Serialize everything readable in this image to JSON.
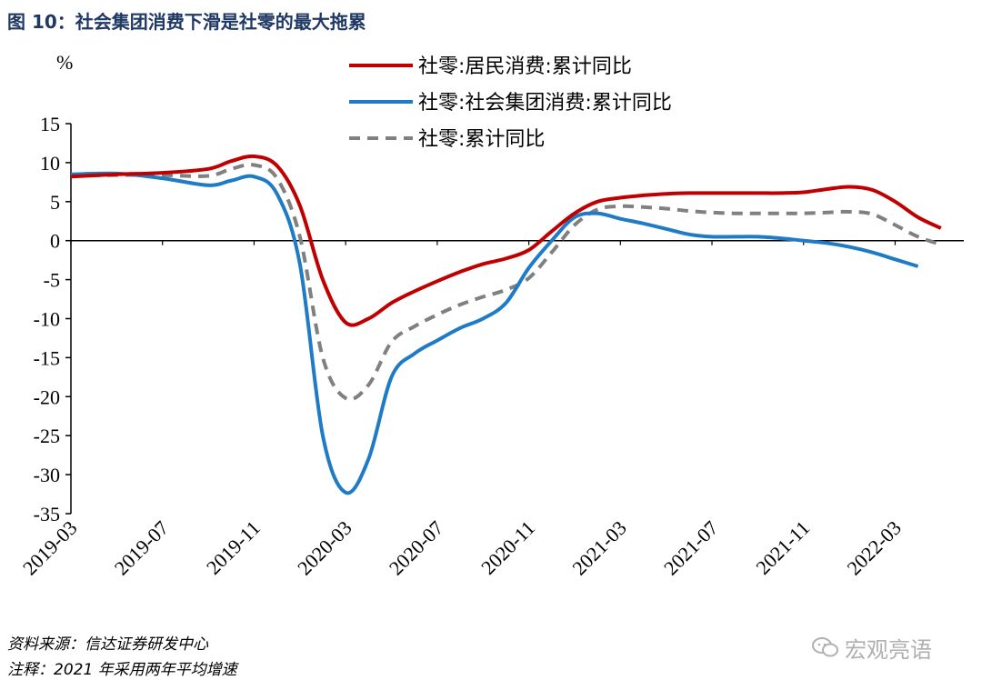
{
  "title": "图 10：社会集团消费下滑是社零的最大拖累",
  "source": "资料来源：信达证券研发中心",
  "note": "注释：2021 年采用两年平均增速",
  "watermark": "宏观亮语",
  "colors": {
    "series1": "#c00000",
    "series2": "#1f7bc6",
    "series3": "#808080",
    "title": "#1f3864"
  },
  "chart_data": {
    "type": "line",
    "ylabel": "%",
    "ylim": [
      -35,
      15
    ],
    "yticks": [
      15,
      10,
      5,
      0,
      -5,
      -10,
      -15,
      -20,
      -25,
      -30,
      -35
    ],
    "xrange": [
      "2019-03",
      "2022-06"
    ],
    "xticks": [
      "2019-03",
      "2019-07",
      "2019-11",
      "2020-03",
      "2020-07",
      "2020-11",
      "2021-03",
      "2021-07",
      "2021-11",
      "2022-03"
    ],
    "legend_position": "top-right",
    "series": [
      {
        "name": "社零:居民消费:累计同比",
        "style": "solid",
        "points": [
          [
            "2019-03",
            8.2
          ],
          [
            "2019-05",
            8.5
          ],
          [
            "2019-07",
            8.7
          ],
          [
            "2019-09",
            9.2
          ],
          [
            "2019-10",
            10.2
          ],
          [
            "2019-11",
            10.8
          ],
          [
            "2019-12",
            9.6
          ],
          [
            "2020-01",
            4.5
          ],
          [
            "2020-02",
            -5
          ],
          [
            "2020-03",
            -10.5
          ],
          [
            "2020-04",
            -10
          ],
          [
            "2020-05",
            -8
          ],
          [
            "2020-06",
            -6.5
          ],
          [
            "2020-07",
            -5.2
          ],
          [
            "2020-08",
            -4
          ],
          [
            "2020-09",
            -3
          ],
          [
            "2020-10",
            -2.3
          ],
          [
            "2020-11",
            -1.2
          ],
          [
            "2020-12",
            1.2
          ],
          [
            "2021-01",
            3.5
          ],
          [
            "2021-02",
            5
          ],
          [
            "2021-03",
            5.5
          ],
          [
            "2021-04",
            5.8
          ],
          [
            "2021-05",
            6
          ],
          [
            "2021-06",
            6.1
          ],
          [
            "2021-07",
            6.1
          ],
          [
            "2021-08",
            6.1
          ],
          [
            "2021-09",
            6.1
          ],
          [
            "2021-10",
            6.1
          ],
          [
            "2021-11",
            6.2
          ],
          [
            "2021-12",
            6.6
          ],
          [
            "2022-01",
            6.9
          ],
          [
            "2022-02",
            6.5
          ],
          [
            "2022-03",
            5
          ],
          [
            "2022-04",
            3
          ],
          [
            "2022-05",
            1.6
          ]
        ]
      },
      {
        "name": "社零:社会集团消费:累计同比",
        "style": "solid",
        "points": [
          [
            "2019-03",
            8.5
          ],
          [
            "2019-05",
            8.6
          ],
          [
            "2019-07",
            8
          ],
          [
            "2019-09",
            7.1
          ],
          [
            "2019-10",
            7.7
          ],
          [
            "2019-11",
            8.2
          ],
          [
            "2019-12",
            6
          ],
          [
            "2020-01",
            -3
          ],
          [
            "2020-02",
            -25
          ],
          [
            "2020-03",
            -32.3
          ],
          [
            "2020-04",
            -28
          ],
          [
            "2020-05",
            -17.5
          ],
          [
            "2020-06",
            -14.5
          ],
          [
            "2020-07",
            -12.8
          ],
          [
            "2020-08",
            -11.2
          ],
          [
            "2020-09",
            -10
          ],
          [
            "2020-10",
            -8
          ],
          [
            "2020-11",
            -3.5
          ],
          [
            "2020-12",
            0
          ],
          [
            "2021-01",
            3
          ],
          [
            "2021-02",
            3.5
          ],
          [
            "2021-03",
            2.8
          ],
          [
            "2021-04",
            2.2
          ],
          [
            "2021-05",
            1.5
          ],
          [
            "2021-06",
            0.8
          ],
          [
            "2021-07",
            0.5
          ],
          [
            "2021-08",
            0.5
          ],
          [
            "2021-09",
            0.5
          ],
          [
            "2021-10",
            0.3
          ],
          [
            "2021-11",
            0
          ],
          [
            "2021-12",
            -0.3
          ],
          [
            "2022-01",
            -0.8
          ],
          [
            "2022-02",
            -1.5
          ],
          [
            "2022-03",
            -2.4
          ],
          [
            "2022-04",
            -3.3
          ]
        ]
      },
      {
        "name": "社零:累计同比",
        "style": "dashed",
        "points": [
          [
            "2019-03",
            8.3
          ],
          [
            "2019-05",
            8.4
          ],
          [
            "2019-07",
            8.4
          ],
          [
            "2019-09",
            8.3
          ],
          [
            "2019-10",
            9.2
          ],
          [
            "2019-11",
            9.7
          ],
          [
            "2019-12",
            8
          ],
          [
            "2020-01",
            0.5
          ],
          [
            "2020-02",
            -15
          ],
          [
            "2020-03",
            -20.2
          ],
          [
            "2020-04",
            -18.5
          ],
          [
            "2020-05",
            -13
          ],
          [
            "2020-06",
            -11
          ],
          [
            "2020-07",
            -9.5
          ],
          [
            "2020-08",
            -8.2
          ],
          [
            "2020-09",
            -7.2
          ],
          [
            "2020-10",
            -6.3
          ],
          [
            "2020-11",
            -4.8
          ],
          [
            "2020-12",
            -1.5
          ],
          [
            "2021-01",
            2
          ],
          [
            "2021-02",
            4
          ],
          [
            "2021-03",
            4.4
          ],
          [
            "2021-04",
            4.3
          ],
          [
            "2021-05",
            4.1
          ],
          [
            "2021-06",
            3.8
          ],
          [
            "2021-07",
            3.6
          ],
          [
            "2021-08",
            3.5
          ],
          [
            "2021-09",
            3.5
          ],
          [
            "2021-10",
            3.5
          ],
          [
            "2021-11",
            3.5
          ],
          [
            "2021-12",
            3.6
          ],
          [
            "2022-01",
            3.7
          ],
          [
            "2022-02",
            3.4
          ],
          [
            "2022-03",
            2
          ],
          [
            "2022-04",
            0.5
          ],
          [
            "2022-05",
            -0.5
          ]
        ]
      }
    ]
  }
}
